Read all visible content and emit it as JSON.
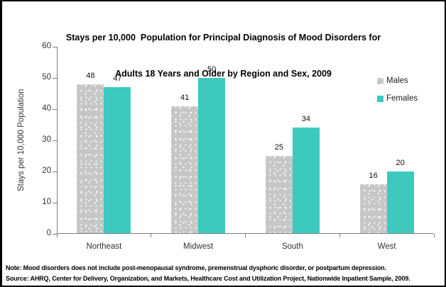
{
  "title": {
    "line1": "Stays per 10,000  Population for Principal Diagnosis of Mood Disorders for",
    "line2": "Adults 18 Years and Older by Region and Sex, 2009"
  },
  "legend": {
    "males": "Males",
    "females": "Females"
  },
  "notes": {
    "note": "Note: Mood disorders does not include post-menopausal syndrome, premenstrual dysphoric disorder, or postpartum depression.",
    "source": "Source: AHRQ, Center for Delivery, Organization, and Markets, Healthcare Cost and Utilization Project, Nationwide Inpatient Sample, 2009."
  },
  "colors": {
    "males": "#c6c6c6",
    "females": "#3dc9bd",
    "axis": "#808080",
    "text": "#333333"
  },
  "chart_data": {
    "type": "bar",
    "categories": [
      "Northeast",
      "Midwest",
      "South",
      "West"
    ],
    "series": [
      {
        "name": "Males",
        "values": [
          48,
          41,
          25,
          16
        ]
      },
      {
        "name": "Females",
        "values": [
          47,
          50,
          34,
          20
        ]
      }
    ],
    "title": "Stays per 10,000 Population for Principal Diagnosis of Mood Disorders for Adults 18 Years and Older by Region and Sex, 2009",
    "xlabel": "",
    "ylabel": "Stays per 10,000 Population",
    "ylim": [
      0,
      60
    ],
    "yticks": [
      0,
      10,
      20,
      30,
      40,
      50,
      60
    ],
    "grid": false,
    "legend_position": "right",
    "data_labels": true
  }
}
